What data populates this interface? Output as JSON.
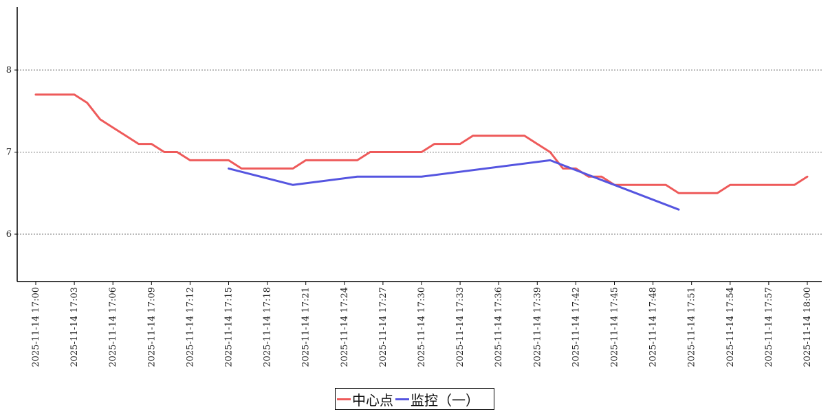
{
  "chart_data": {
    "type": "line",
    "x_unit": "date-time",
    "x_ticks": [
      "2025-11-14 17:00",
      "2025-11-14 17:03",
      "2025-11-14 17:06",
      "2025-11-14 17:09",
      "2025-11-14 17:12",
      "2025-11-14 17:15",
      "2025-11-14 17:18",
      "2025-11-14 17:21",
      "2025-11-14 17:24",
      "2025-11-14 17:27",
      "2025-11-14 17:30",
      "2025-11-14 17:33",
      "2025-11-14 17:36",
      "2025-11-14 17:39",
      "2025-11-14 17:42",
      "2025-11-14 17:45",
      "2025-11-14 17:48",
      "2025-11-14 17:51",
      "2025-11-14 17:54",
      "2025-11-14 17:57",
      "2025-11-14 18:00"
    ],
    "ylim": [
      5.45,
      8.8
    ],
    "y_ticks": [
      6,
      7,
      8
    ],
    "grid": "horizontal dashed",
    "legend_position": "bottom-center",
    "series": [
      {
        "name": "中心点",
        "color": "#ee5a5a",
        "points": [
          {
            "x": "2025-11-14 17:00",
            "y": 7.7
          },
          {
            "x": "2025-11-14 17:01",
            "y": 7.7
          },
          {
            "x": "2025-11-14 17:02",
            "y": 7.7
          },
          {
            "x": "2025-11-14 17:03",
            "y": 7.7
          },
          {
            "x": "2025-11-14 17:04",
            "y": 7.6
          },
          {
            "x": "2025-11-14 17:05",
            "y": 7.4
          },
          {
            "x": "2025-11-14 17:06",
            "y": 7.3
          },
          {
            "x": "2025-11-14 17:07",
            "y": 7.2
          },
          {
            "x": "2025-11-14 17:08",
            "y": 7.1
          },
          {
            "x": "2025-11-14 17:09",
            "y": 7.1
          },
          {
            "x": "2025-11-14 17:10",
            "y": 7.0
          },
          {
            "x": "2025-11-14 17:11",
            "y": 7.0
          },
          {
            "x": "2025-11-14 17:12",
            "y": 6.9
          },
          {
            "x": "2025-11-14 17:13",
            "y": 6.9
          },
          {
            "x": "2025-11-14 17:14",
            "y": 6.9
          },
          {
            "x": "2025-11-14 17:15",
            "y": 6.9
          },
          {
            "x": "2025-11-14 17:16",
            "y": 6.8
          },
          {
            "x": "2025-11-14 17:17",
            "y": 6.8
          },
          {
            "x": "2025-11-14 17:18",
            "y": 6.8
          },
          {
            "x": "2025-11-14 17:19",
            "y": 6.8
          },
          {
            "x": "2025-11-14 17:20",
            "y": 6.8
          },
          {
            "x": "2025-11-14 17:21",
            "y": 6.9
          },
          {
            "x": "2025-11-14 17:22",
            "y": 6.9
          },
          {
            "x": "2025-11-14 17:23",
            "y": 6.9
          },
          {
            "x": "2025-11-14 17:24",
            "y": 6.9
          },
          {
            "x": "2025-11-14 17:25",
            "y": 6.9
          },
          {
            "x": "2025-11-14 17:26",
            "y": 7.0
          },
          {
            "x": "2025-11-14 17:27",
            "y": 7.0
          },
          {
            "x": "2025-11-14 17:28",
            "y": 7.0
          },
          {
            "x": "2025-11-14 17:29",
            "y": 7.0
          },
          {
            "x": "2025-11-14 17:30",
            "y": 7.0
          },
          {
            "x": "2025-11-14 17:31",
            "y": 7.1
          },
          {
            "x": "2025-11-14 17:32",
            "y": 7.1
          },
          {
            "x": "2025-11-14 17:33",
            "y": 7.1
          },
          {
            "x": "2025-11-14 17:34",
            "y": 7.2
          },
          {
            "x": "2025-11-14 17:35",
            "y": 7.2
          },
          {
            "x": "2025-11-14 17:36",
            "y": 7.2
          },
          {
            "x": "2025-11-14 17:37",
            "y": 7.2
          },
          {
            "x": "2025-11-14 17:38",
            "y": 7.2
          },
          {
            "x": "2025-11-14 17:39",
            "y": 7.1
          },
          {
            "x": "2025-11-14 17:40",
            "y": 7.0
          },
          {
            "x": "2025-11-14 17:41",
            "y": 6.8
          },
          {
            "x": "2025-11-14 17:42",
            "y": 6.8
          },
          {
            "x": "2025-11-14 17:43",
            "y": 6.7
          },
          {
            "x": "2025-11-14 17:44",
            "y": 6.7
          },
          {
            "x": "2025-11-14 17:45",
            "y": 6.6
          },
          {
            "x": "2025-11-14 17:46",
            "y": 6.6
          },
          {
            "x": "2025-11-14 17:47",
            "y": 6.6
          },
          {
            "x": "2025-11-14 17:48",
            "y": 6.6
          },
          {
            "x": "2025-11-14 17:49",
            "y": 6.6
          },
          {
            "x": "2025-11-14 17:50",
            "y": 6.5
          },
          {
            "x": "2025-11-14 17:51",
            "y": 6.5
          },
          {
            "x": "2025-11-14 17:52",
            "y": 6.5
          },
          {
            "x": "2025-11-14 17:53",
            "y": 6.5
          },
          {
            "x": "2025-11-14 17:54",
            "y": 6.6
          },
          {
            "x": "2025-11-14 17:55",
            "y": 6.6
          },
          {
            "x": "2025-11-14 17:56",
            "y": 6.6
          },
          {
            "x": "2025-11-14 17:57",
            "y": 6.6
          },
          {
            "x": "2025-11-14 17:58",
            "y": 6.6
          },
          {
            "x": "2025-11-14 17:59",
            "y": 6.6
          },
          {
            "x": "2025-11-14 18:00",
            "y": 6.7
          }
        ]
      },
      {
        "name": "监控（一）",
        "color": "#5555e0",
        "points": [
          {
            "x": "2025-11-14 17:15",
            "y": 6.8
          },
          {
            "x": "2025-11-14 17:20",
            "y": 6.6
          },
          {
            "x": "2025-11-14 17:25",
            "y": 6.7
          },
          {
            "x": "2025-11-14 17:30",
            "y": 6.7
          },
          {
            "x": "2025-11-14 17:40",
            "y": 6.9
          },
          {
            "x": "2025-11-14 17:45",
            "y": 6.6
          },
          {
            "x": "2025-11-14 17:50",
            "y": 6.3
          }
        ]
      }
    ]
  }
}
